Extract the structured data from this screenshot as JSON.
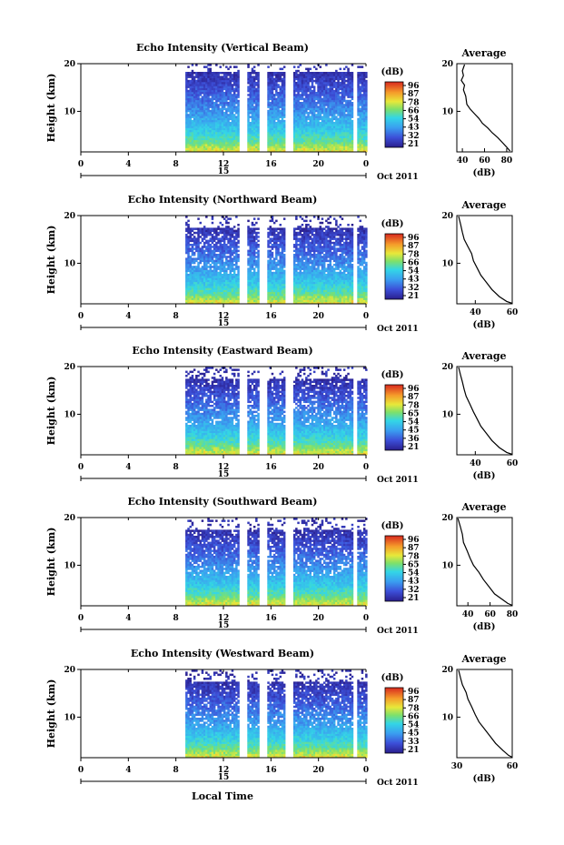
{
  "x_axis_title": "Local Time",
  "chart_data": [
    {
      "type": "heatmap",
      "title": "Echo Intensity (Vertical Beam)",
      "ylabel": "Height (km)",
      "yticks": [
        "20",
        "10"
      ],
      "xticks": [
        "0",
        "4",
        "8",
        "12",
        "16",
        "20",
        "0"
      ],
      "xlim": [
        0,
        24
      ],
      "ylim": [
        1.5,
        20
      ],
      "date_marker": "15",
      "date_label": "Oct 2011",
      "colorbar": {
        "unit": "(dB)",
        "ticks": [
          "96",
          "87",
          "78",
          "66",
          "54",
          "43",
          "32",
          "21"
        ]
      },
      "data_start_hour": 8.8,
      "gaps_hours": [
        [
          13.2,
          13.9
        ],
        [
          14.9,
          15.6
        ],
        [
          17.2,
          17.8
        ],
        [
          22.8,
          23.1
        ]
      ],
      "average_profile": {
        "title": "Average",
        "xlabel": "(dB)",
        "xticks": [
          "40",
          "60",
          "80"
        ],
        "xlim": [
          35,
          85
        ],
        "yticks": [
          "20",
          "10"
        ],
        "points": [
          [
            42,
            19.8
          ],
          [
            40,
            18.5
          ],
          [
            41,
            17.5
          ],
          [
            39,
            16.5
          ],
          [
            42,
            15.5
          ],
          [
            41,
            14.5
          ],
          [
            43,
            13.2
          ],
          [
            44,
            11.5
          ],
          [
            47,
            10.5
          ],
          [
            51,
            9.5
          ],
          [
            55,
            8.5
          ],
          [
            58,
            7.5
          ],
          [
            63,
            6.5
          ],
          [
            67,
            5.5
          ],
          [
            72,
            4.5
          ],
          [
            76,
            3.5
          ],
          [
            80,
            2.5
          ],
          [
            83,
            1.7
          ]
        ]
      }
    },
    {
      "type": "heatmap",
      "title": "Echo Intensity (Northward Beam)",
      "ylabel": "Height (km)",
      "yticks": [
        "20",
        "10"
      ],
      "xticks": [
        "0",
        "4",
        "8",
        "12",
        "16",
        "20",
        "0"
      ],
      "xlim": [
        0,
        24
      ],
      "ylim": [
        1.5,
        20
      ],
      "date_marker": "15",
      "date_label": "Oct 2011",
      "colorbar": {
        "unit": "(dB)",
        "ticks": [
          "96",
          "87",
          "78",
          "66",
          "54",
          "43",
          "32",
          "21"
        ]
      },
      "data_start_hour": 8.8,
      "gaps_hours": [
        [
          13.2,
          13.9
        ],
        [
          14.9,
          15.6
        ],
        [
          17.2,
          17.8
        ],
        [
          22.8,
          23.1
        ]
      ],
      "average_profile": {
        "title": "Average",
        "xlabel": "(dB)",
        "xticks": [
          "40",
          "60"
        ],
        "xlim": [
          30,
          60
        ],
        "yticks": [
          "20",
          "10"
        ],
        "points": [
          [
            31,
            19.8
          ],
          [
            32,
            18.2
          ],
          [
            33,
            16.5
          ],
          [
            34,
            15
          ],
          [
            36,
            13.5
          ],
          [
            38,
            12
          ],
          [
            39,
            10.5
          ],
          [
            41,
            9
          ],
          [
            43,
            7.5
          ],
          [
            46,
            6
          ],
          [
            49,
            4.5
          ],
          [
            53,
            3
          ],
          [
            57,
            2
          ],
          [
            60,
            1.6
          ]
        ]
      }
    },
    {
      "type": "heatmap",
      "title": "Echo Intensity (Eastward Beam)",
      "ylabel": "Height (km)",
      "yticks": [
        "20",
        "10"
      ],
      "xticks": [
        "0",
        "4",
        "8",
        "12",
        "16",
        "20",
        "0"
      ],
      "xlim": [
        0,
        24
      ],
      "ylim": [
        1.5,
        20
      ],
      "date_marker": "15",
      "date_label": "Oct 2011",
      "colorbar": {
        "unit": "(dB)",
        "ticks": [
          "96",
          "87",
          "78",
          "65",
          "54",
          "45",
          "36",
          "21"
        ]
      },
      "data_start_hour": 8.8,
      "gaps_hours": [
        [
          13.2,
          13.9
        ],
        [
          14.9,
          15.6
        ],
        [
          17.2,
          17.8
        ],
        [
          22.8,
          23.1
        ]
      ],
      "average_profile": {
        "title": "Average",
        "xlabel": "(dB)",
        "xticks": [
          "40",
          "60"
        ],
        "xlim": [
          30,
          60
        ],
        "yticks": [
          "20",
          "10"
        ],
        "points": [
          [
            31,
            19.8
          ],
          [
            32,
            18.2
          ],
          [
            33,
            16.8
          ],
          [
            34,
            15.2
          ],
          [
            35,
            13.8
          ],
          [
            37,
            12.2
          ],
          [
            39,
            10.5
          ],
          [
            41,
            9
          ],
          [
            43,
            7.5
          ],
          [
            46,
            6
          ],
          [
            49,
            4.5
          ],
          [
            53,
            3
          ],
          [
            57,
            2
          ],
          [
            60,
            1.6
          ]
        ]
      }
    },
    {
      "type": "heatmap",
      "title": "Echo Intensity (Southward Beam)",
      "ylabel": "Height (km)",
      "yticks": [
        "20",
        "10"
      ],
      "xticks": [
        "0",
        "4",
        "8",
        "12",
        "16",
        "20",
        "0"
      ],
      "xlim": [
        0,
        24
      ],
      "ylim": [
        1.5,
        20
      ],
      "date_marker": "15",
      "date_label": "Oct 2011",
      "colorbar": {
        "unit": "(dB)",
        "ticks": [
          "96",
          "87",
          "78",
          "65",
          "54",
          "43",
          "32",
          "21"
        ]
      },
      "data_start_hour": 8.8,
      "gaps_hours": [
        [
          13.2,
          13.9
        ],
        [
          14.9,
          15.6
        ],
        [
          17.2,
          17.8
        ],
        [
          22.8,
          23.1
        ]
      ],
      "average_profile": {
        "title": "Average",
        "xlabel": "(dB)",
        "xticks": [
          "40",
          "60",
          "80"
        ],
        "xlim": [
          30,
          80
        ],
        "yticks": [
          "20",
          "10"
        ],
        "points": [
          [
            31,
            19.8
          ],
          [
            33,
            18.2
          ],
          [
            35,
            16.5
          ],
          [
            36,
            14.8
          ],
          [
            39,
            13.2
          ],
          [
            42,
            11.5
          ],
          [
            45,
            10
          ],
          [
            50,
            8.5
          ],
          [
            54,
            7
          ],
          [
            59,
            5.5
          ],
          [
            64,
            4
          ],
          [
            70,
            3
          ],
          [
            76,
            2
          ],
          [
            80,
            1.6
          ]
        ]
      }
    },
    {
      "type": "heatmap",
      "title": "Echo Intensity (Westward Beam)",
      "ylabel": "Height (km)",
      "yticks": [
        "20",
        "10"
      ],
      "xticks": [
        "0",
        "4",
        "8",
        "12",
        "16",
        "20",
        "0"
      ],
      "xlim": [
        0,
        24
      ],
      "ylim": [
        1.5,
        20
      ],
      "date_marker": "15",
      "date_label": "Oct 2011",
      "colorbar": {
        "unit": "(dB)",
        "ticks": [
          "96",
          "87",
          "78",
          "66",
          "54",
          "45",
          "33",
          "21"
        ]
      },
      "data_start_hour": 8.8,
      "gaps_hours": [
        [
          13.2,
          13.9
        ],
        [
          14.9,
          15.6
        ],
        [
          17.2,
          17.8
        ],
        [
          22.8,
          23.1
        ]
      ],
      "average_profile": {
        "title": "Average",
        "xlabel": "(dB)",
        "xticks": [
          "30",
          "60"
        ],
        "xlim": [
          30,
          60
        ],
        "yticks": [
          "20",
          "10"
        ],
        "points": [
          [
            31,
            19.8
          ],
          [
            32,
            18.2
          ],
          [
            33,
            16.8
          ],
          [
            35,
            15.2
          ],
          [
            36,
            13.8
          ],
          [
            38,
            12.2
          ],
          [
            40,
            10.5
          ],
          [
            42,
            9
          ],
          [
            45,
            7.5
          ],
          [
            48,
            6
          ],
          [
            51,
            4.5
          ],
          [
            55,
            3
          ],
          [
            58,
            2
          ],
          [
            60,
            1.6
          ]
        ]
      }
    }
  ]
}
